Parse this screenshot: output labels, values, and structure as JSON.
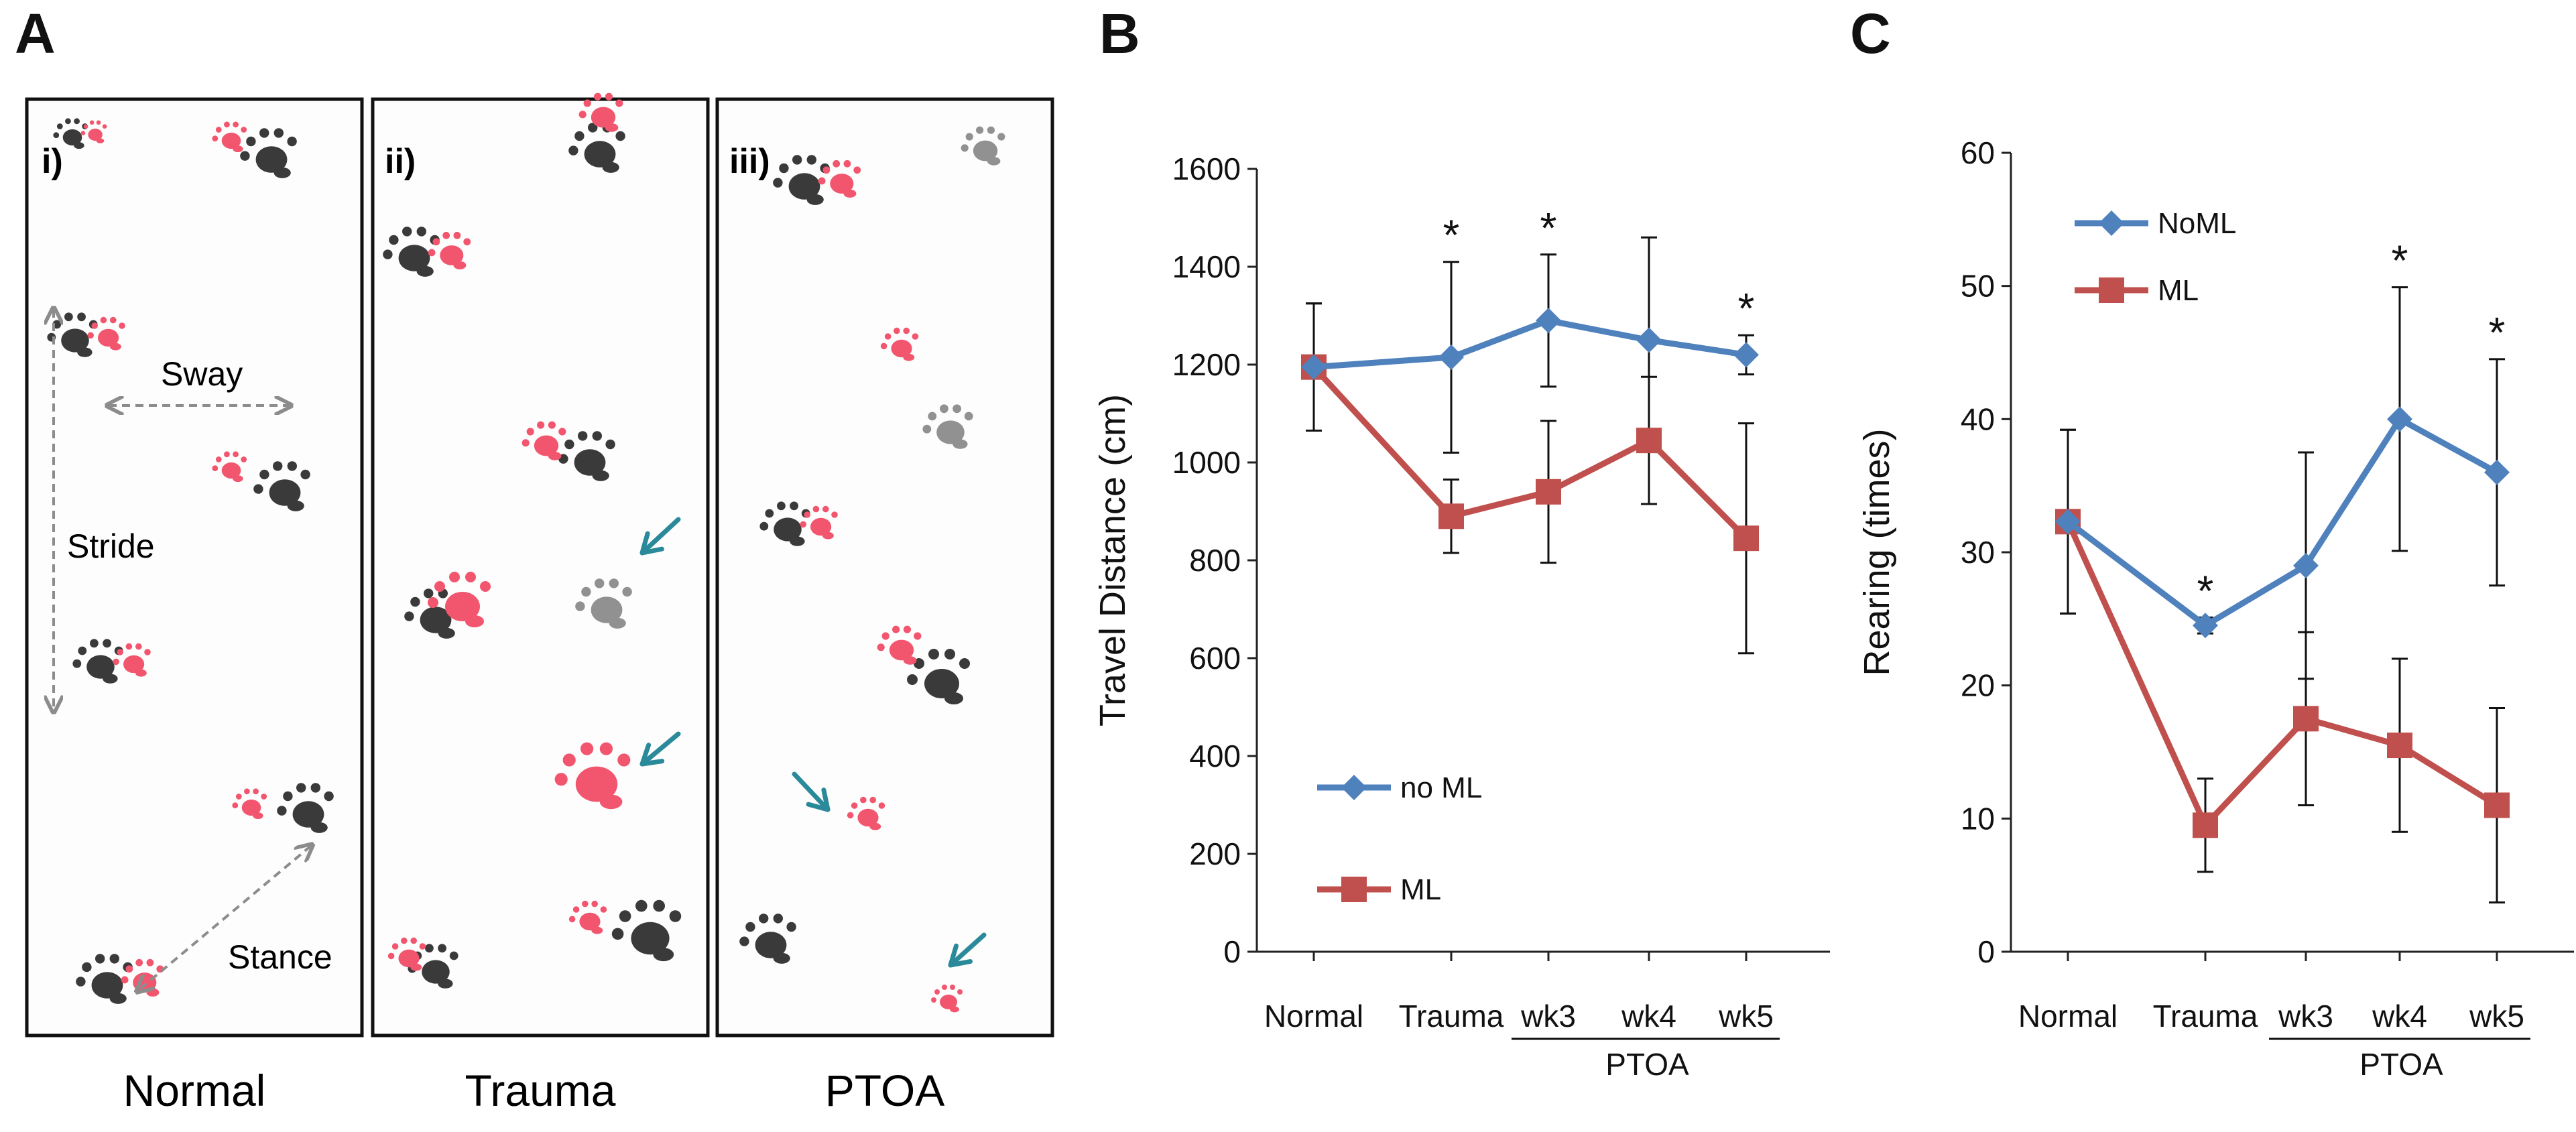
{
  "panel_labels": {
    "a": "A",
    "b": "B",
    "c": "C"
  },
  "footprints": {
    "panels": [
      {
        "tag": "i)",
        "caption": "Normal"
      },
      {
        "tag": "ii)",
        "caption": "Trauma"
      },
      {
        "tag": "iii)",
        "caption": "PTOA"
      }
    ],
    "annotations": {
      "sway": "Sway",
      "stride": "Stride",
      "stance": "Stance"
    },
    "colors": {
      "hind": "#3a3a3a",
      "fore": "#f2566e",
      "arrow": "#2a8a99",
      "measure": "#8c8c8c"
    }
  },
  "chart_data": [
    {
      "type": "line",
      "title": "",
      "ylabel": "Travel Distance (cm)",
      "xlabel": "",
      "categories": [
        "Normal",
        "Trauma",
        "wk3",
        "wk4",
        "wk5"
      ],
      "group_label": {
        "text": "PTOA",
        "spans": [
          "wk3",
          "wk4",
          "wk5"
        ]
      },
      "ylim": [
        0,
        1600
      ],
      "yticks": [
        0,
        200,
        400,
        600,
        800,
        1000,
        1200,
        1400,
        1600
      ],
      "legend_position": "bottom-left",
      "significance": {
        "marker": "*",
        "at": [
          "Trauma",
          "wk3",
          "wk5"
        ]
      },
      "series": [
        {
          "name": "no ML",
          "marker": "diamond",
          "color": "#4f81bd",
          "values": [
            1195,
            1215,
            1290,
            1250,
            1220
          ],
          "errors": [
            130,
            195,
            135,
            210,
            40
          ]
        },
        {
          "name": "ML",
          "marker": "square",
          "color": "#c0504d",
          "values": [
            1195,
            890,
            940,
            1045,
            845
          ],
          "errors": [
            130,
            75,
            145,
            130,
            235
          ]
        }
      ]
    },
    {
      "type": "line",
      "title": "",
      "ylabel": "Rearing (times)",
      "xlabel": "",
      "categories": [
        "Normal",
        "Trauma",
        "wk3",
        "wk4",
        "wk5"
      ],
      "group_label": {
        "text": "PTOA",
        "spans": [
          "wk3",
          "wk4",
          "wk5"
        ]
      },
      "ylim": [
        0,
        60
      ],
      "yticks": [
        0,
        10,
        20,
        30,
        40,
        50,
        60
      ],
      "legend_position": "top-left",
      "significance": {
        "marker": "*",
        "at": [
          "Trauma",
          "wk4",
          "wk5"
        ]
      },
      "series": [
        {
          "name": "NoML",
          "marker": "diamond",
          "color": "#4f81bd",
          "values": [
            32.3,
            24.5,
            29,
            40,
            36
          ],
          "errors": [
            6.9,
            0.6,
            8.5,
            9.9,
            8.5
          ]
        },
        {
          "name": "ML",
          "marker": "square",
          "color": "#c0504d",
          "values": [
            32.3,
            9.5,
            17.5,
            15.5,
            11
          ],
          "errors": [
            6.9,
            3.5,
            6.5,
            6.5,
            7.3
          ]
        }
      ]
    }
  ]
}
